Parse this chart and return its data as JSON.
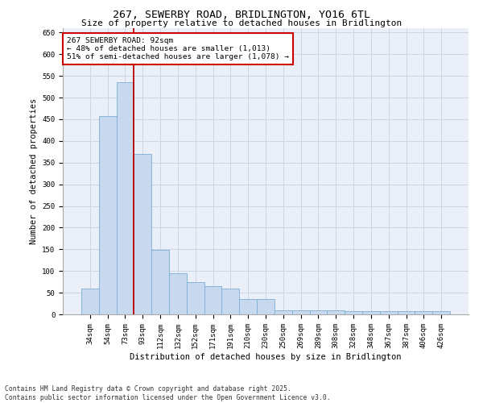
{
  "title_line1": "267, SEWERBY ROAD, BRIDLINGTON, YO16 6TL",
  "title_line2": "Size of property relative to detached houses in Bridlington",
  "xlabel": "Distribution of detached houses by size in Bridlington",
  "ylabel": "Number of detached properties",
  "categories": [
    "34sqm",
    "54sqm",
    "73sqm",
    "93sqm",
    "112sqm",
    "132sqm",
    "152sqm",
    "171sqm",
    "191sqm",
    "210sqm",
    "230sqm",
    "250sqm",
    "269sqm",
    "289sqm",
    "308sqm",
    "328sqm",
    "348sqm",
    "367sqm",
    "387sqm",
    "406sqm",
    "426sqm"
  ],
  "values": [
    60,
    458,
    535,
    370,
    148,
    95,
    75,
    65,
    60,
    35,
    35,
    10,
    10,
    10,
    10,
    8,
    8,
    8,
    8,
    8,
    8
  ],
  "bar_color": "#c8d9ef",
  "bar_edge_color": "#7aafd4",
  "grid_color": "#cdd5e5",
  "background_color": "#eaeff8",
  "vline_x_index": 3,
  "vline_color": "#bb0000",
  "annotation_text": "267 SEWERBY ROAD: 92sqm\n← 48% of detached houses are smaller (1,013)\n51% of semi-detached houses are larger (1,078) →",
  "annotation_box_color": "#cc0000",
  "ylim": [
    0,
    660
  ],
  "yticks": [
    0,
    50,
    100,
    150,
    200,
    250,
    300,
    350,
    400,
    450,
    500,
    550,
    600,
    650
  ],
  "footnote_line1": "Contains HM Land Registry data © Crown copyright and database right 2025.",
  "footnote_line2": "Contains public sector information licensed under the Open Government Licence v3.0.",
  "title_fontsize": 9.5,
  "subtitle_fontsize": 8,
  "xlabel_fontsize": 7.5,
  "ylabel_fontsize": 7.5,
  "tick_fontsize": 6.5,
  "annotation_fontsize": 6.8,
  "footnote_fontsize": 5.8
}
